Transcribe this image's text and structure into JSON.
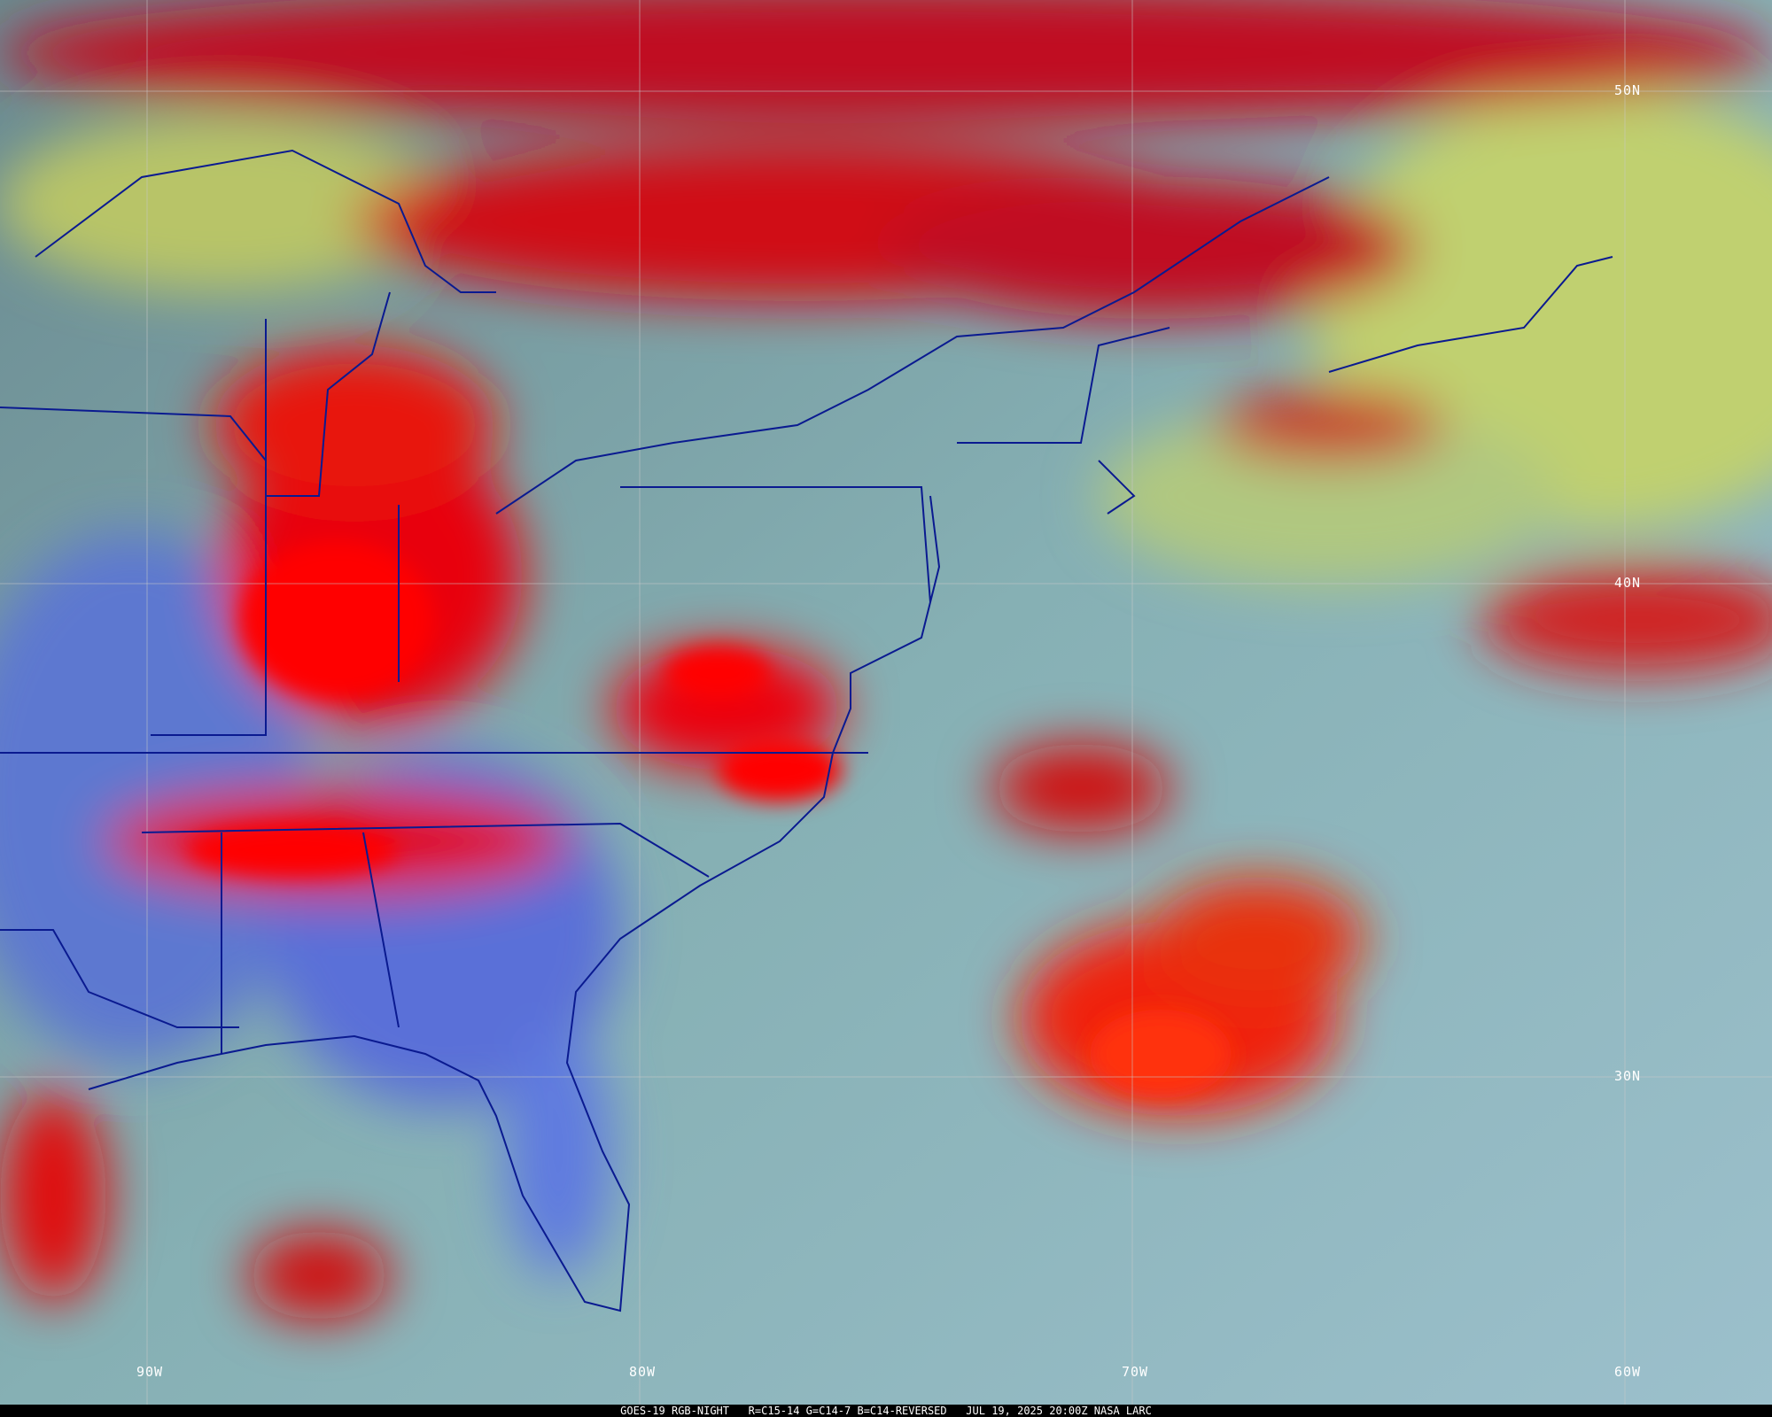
{
  "caption": "GOES-19 RGB-NIGHT   R=C15-14 G=C14-7 B=C14-REVERSED   JUL 19, 2025 20:00Z NASA LARC",
  "grid": {
    "latitudes": [
      "50N",
      "40N",
      "30N"
    ],
    "longitudes": [
      "90W",
      "80W",
      "70W",
      "60W"
    ]
  },
  "colors": {
    "deep_cloud": "#e00010",
    "low_cloud_ocean": "#8fb8c0",
    "land_clear": "#4e6ad8",
    "clear_green": "#a8c870",
    "boundaries": "#0a1a90",
    "gridline": "#c8c8c8"
  }
}
